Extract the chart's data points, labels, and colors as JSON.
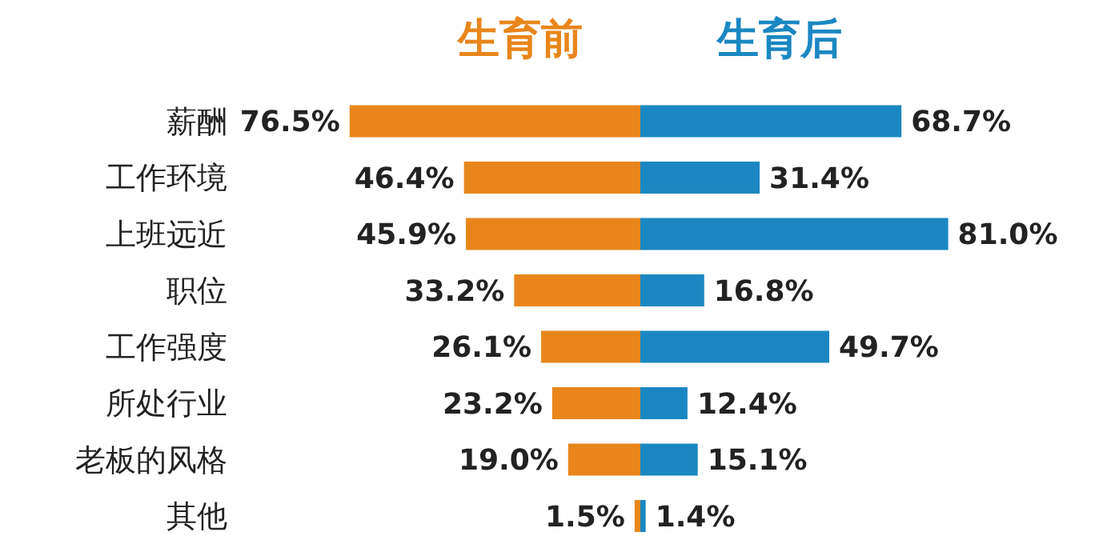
{
  "chart_data": [
    {
      "type": "bar",
      "orientation": "horizontal",
      "title": "生育前",
      "categories": [
        "薪酬",
        "工作环境",
        "上班远近",
        "职位",
        "工作强度",
        "所处行业",
        "老板的风格",
        "其他"
      ],
      "values": [
        76.5,
        46.4,
        45.9,
        33.2,
        26.1,
        23.2,
        19.0,
        1.5
      ],
      "value_labels": [
        "76.5%",
        "46.4%",
        "45.9%",
        "33.2%",
        "26.1%",
        "23.2%",
        "19.0%",
        "1.5%"
      ],
      "color": "#e8861c"
    },
    {
      "type": "bar",
      "orientation": "horizontal",
      "title": "生育后",
      "categories": [
        null,
        null,
        null,
        null,
        null,
        null,
        null,
        null
      ],
      "values": [
        68.7,
        31.4,
        81.0,
        16.8,
        49.7,
        12.4,
        15.1,
        1.4
      ],
      "value_labels": [
        "68.7%",
        "31.4%",
        "81.0%",
        "16.8%",
        "49.7%",
        "12.4%",
        "15.1%",
        "1.4%"
      ],
      "color": "#1a87c2"
    }
  ]
}
